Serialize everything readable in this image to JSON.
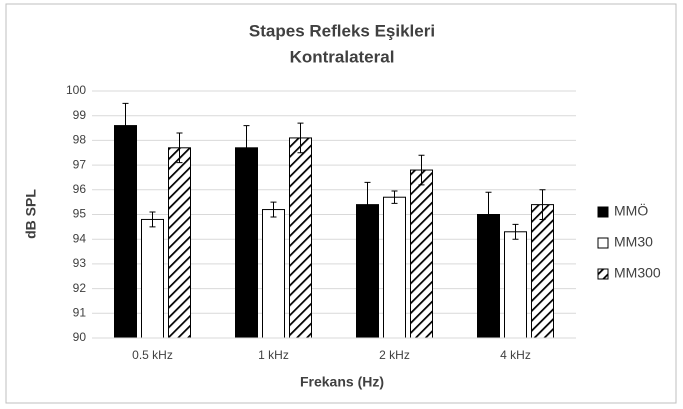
{
  "chart_data": {
    "type": "bar",
    "title": [
      "Stapes Refleks Eşikleri",
      "Kontralateral"
    ],
    "x_label": "Frekans (Hz)",
    "y_label": "dB SPL",
    "categories": [
      "0.5 kHz",
      "1 kHz",
      "2 kHz",
      "4 kHz"
    ],
    "series": [
      {
        "name": "MMÖ",
        "color": "#000000",
        "pattern": "solid",
        "values": [
          98.6,
          97.7,
          95.4,
          95.0
        ],
        "errors": [
          0.9,
          0.9,
          0.9,
          0.9
        ]
      },
      {
        "name": "MM30",
        "color": "#ffffff",
        "pattern": "solid",
        "values": [
          94.8,
          95.2,
          95.7,
          94.3
        ],
        "errors": [
          0.3,
          0.3,
          0.25,
          0.3
        ]
      },
      {
        "name": "MM300",
        "color": "#000000",
        "pattern": "diagonal",
        "values": [
          97.7,
          98.1,
          96.8,
          95.4
        ],
        "errors": [
          0.6,
          0.6,
          0.6,
          0.6
        ]
      }
    ],
    "ylim": [
      90,
      100
    ],
    "yticks": [
      90,
      91,
      92,
      93,
      94,
      95,
      96,
      97,
      98,
      99,
      100
    ],
    "grid": true,
    "legend": "right"
  }
}
